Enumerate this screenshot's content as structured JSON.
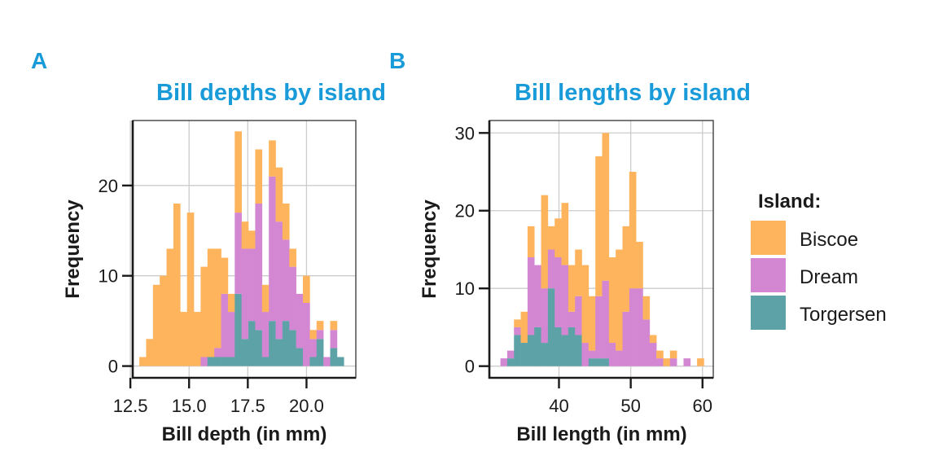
{
  "chart_data": [
    {
      "type": "bar",
      "subtype": "stacked-histogram",
      "tag": "A",
      "title": "Bill depths by island",
      "xlabel": "Bill depth (in mm)",
      "ylabel": "Frequency",
      "xlim": [
        12.6,
        22.1
      ],
      "ylim": [
        -1.3,
        27.2
      ],
      "xticks": [
        12.5,
        15.0,
        17.5,
        20.0
      ],
      "xtick_labels": [
        "12.5",
        "15.0",
        "17.5",
        "20.0"
      ],
      "yticks": [
        0,
        10,
        20
      ],
      "ytick_labels": [
        "0",
        "10",
        "20"
      ],
      "grid": true,
      "bin_start": 12.88,
      "bin_width": 0.2903,
      "series": [
        {
          "name": "Biscoe",
          "values": [
            1,
            3,
            9,
            10,
            13,
            18,
            6,
            17,
            6,
            10,
            12,
            11,
            4,
            2,
            9,
            3,
            2,
            6,
            3,
            4,
            6,
            4,
            2,
            0,
            3,
            1,
            1,
            0,
            1,
            0
          ]
        },
        {
          "name": "Dream",
          "values": [
            0,
            0,
            0,
            0,
            0,
            0,
            0,
            0,
            0,
            1,
            0,
            1,
            7,
            5,
            9,
            10,
            8,
            14,
            5,
            16,
            13,
            9,
            7,
            6,
            7,
            2,
            1,
            1,
            2,
            0
          ]
        },
        {
          "name": "Torgersen",
          "values": [
            0,
            0,
            0,
            0,
            0,
            0,
            0,
            0,
            0,
            0,
            1,
            1,
            1,
            1,
            8,
            3,
            5,
            4,
            1,
            5,
            3,
            5,
            4,
            2,
            0,
            1,
            3,
            0,
            2,
            1
          ]
        }
      ]
    },
    {
      "type": "bar",
      "subtype": "stacked-histogram",
      "tag": "B",
      "title": "Bill lengths by island",
      "xlabel": "Bill length (in mm)",
      "ylabel": "Frequency",
      "xlim": [
        30.3,
        61.5
      ],
      "ylim": [
        -1.5,
        31.6
      ],
      "xticks": [
        40,
        50,
        60
      ],
      "xtick_labels": [
        "40",
        "50",
        "60"
      ],
      "yticks": [
        0,
        10,
        20,
        30
      ],
      "ytick_labels": [
        "0",
        "10",
        "20",
        "30"
      ],
      "grid": true,
      "bin_start": 31.84,
      "bin_width": 0.945,
      "series": [
        {
          "name": "Biscoe",
          "values": [
            0,
            0,
            1,
            4,
            4,
            0,
            12,
            3,
            5,
            8,
            6,
            6,
            10,
            7,
            18,
            19,
            11,
            13,
            11,
            15,
            6,
            3,
            1,
            1,
            1,
            1,
            0,
            0,
            0,
            1
          ]
        },
        {
          "name": "Dream",
          "values": [
            1,
            1,
            1,
            0,
            10,
            8,
            7,
            5,
            9,
            9,
            2,
            5,
            3,
            1,
            8,
            10,
            3,
            2,
            7,
            10,
            10,
            6,
            3,
            1,
            0,
            1,
            0,
            1,
            0,
            0
          ]
        },
        {
          "name": "Torgersen",
          "values": [
            0,
            1,
            4,
            3,
            4,
            5,
            3,
            10,
            5,
            4,
            5,
            4,
            0,
            1,
            1,
            1,
            0,
            0,
            0,
            0,
            0,
            0,
            0,
            0,
            0,
            0,
            0,
            0,
            0,
            0
          ]
        }
      ]
    }
  ],
  "legend": {
    "title": "Island:",
    "position": "right",
    "items": [
      {
        "label": "Biscoe",
        "color": "#FDB45C"
      },
      {
        "label": "Dream",
        "color": "#D387D2"
      },
      {
        "label": "Torgersen",
        "color": "#5DA2A7"
      }
    ]
  },
  "colors": {
    "title": "#1A9BD9",
    "grid": "#CCCCCC",
    "axis": "#1A1A1A"
  }
}
